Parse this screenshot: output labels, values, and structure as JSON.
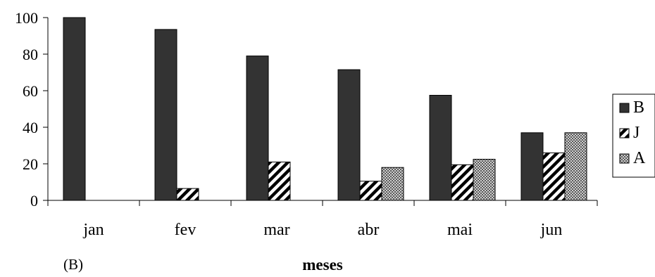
{
  "chart_data": {
    "type": "bar",
    "categories": [
      "jan",
      "fev",
      "mar",
      "abr",
      "mai",
      "jun"
    ],
    "series": [
      {
        "name": "B",
        "values": [
          100,
          93.5,
          79,
          71.5,
          57.5,
          37
        ],
        "color": "#333333",
        "pattern": "solid"
      },
      {
        "name": "J",
        "values": [
          0,
          6.5,
          21,
          10.5,
          19.5,
          26
        ],
        "color": "#000000",
        "pattern": "diagonal-hatch"
      },
      {
        "name": "A",
        "values": [
          0,
          0,
          0,
          18,
          22.5,
          37
        ],
        "color": "#999999",
        "pattern": "checkered"
      }
    ],
    "ylim": [
      0,
      100
    ],
    "yticks": [
      "0",
      "20",
      "40",
      "60",
      "80",
      "100"
    ],
    "xlabel": "meses",
    "ylabel": "",
    "panel_label": "(B)",
    "legend": "right",
    "grid": false
  }
}
